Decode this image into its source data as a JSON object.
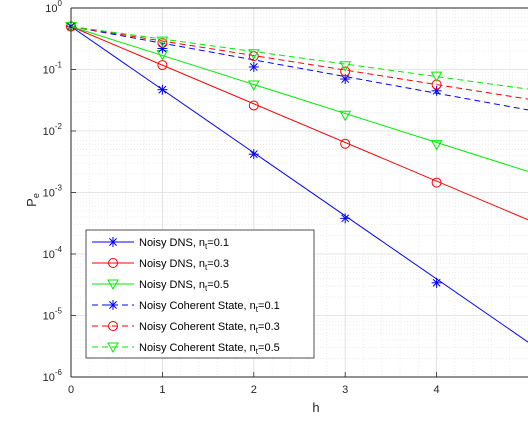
{
  "chart_data": {
    "type": "line",
    "xlabel": "h",
    "ylabel": "P",
    "ylabel_subscript": "e",
    "xlim": [
      0,
      5
    ],
    "ylim": [
      1e-06,
      1
    ],
    "yscale": "log",
    "grid": true,
    "minor_grid": true,
    "legend_position": "bottom-left",
    "x_ticks": [
      "0",
      "1",
      "2",
      "3",
      "4"
    ],
    "y_ticks": [
      {
        "base": "10",
        "exp": "-6"
      },
      {
        "base": "10",
        "exp": "-5"
      },
      {
        "base": "10",
        "exp": "-4"
      },
      {
        "base": "10",
        "exp": "-3"
      },
      {
        "base": "10",
        "exp": "-2"
      },
      {
        "base": "10",
        "exp": "-1"
      },
      {
        "base": "10",
        "exp": "0"
      }
    ],
    "series": [
      {
        "name": "Noisy DNS, n",
        "sub": "t",
        "suffix": "=0.1",
        "color": "#0000ff",
        "dash": false,
        "marker": "star",
        "line_x": [
          0,
          5
        ],
        "line_y": [
          0.5,
          3.7e-06
        ],
        "x": [
          0,
          1,
          2,
          3,
          4
        ],
        "y": [
          0.5,
          0.047,
          0.0042,
          0.00038,
          3.4e-05
        ]
      },
      {
        "name": "Noisy DNS, n",
        "sub": "t",
        "suffix": "=0.3",
        "color": "#ff0000",
        "dash": false,
        "marker": "circle",
        "line_x": [
          0,
          5
        ],
        "line_y": [
          0.5,
          0.00036
        ],
        "x": [
          0,
          1,
          2,
          3,
          4
        ],
        "y": [
          0.5,
          0.118,
          0.026,
          0.0062,
          0.00145
        ]
      },
      {
        "name": "Noisy DNS, n",
        "sub": "t",
        "suffix": "=0.5",
        "color": "#00ee00",
        "dash": false,
        "marker": "triangle",
        "line_x": [
          0,
          5
        ],
        "line_y": [
          0.5,
          0.0022
        ],
        "x": [
          0,
          1,
          2,
          3,
          4
        ],
        "y": [
          0.5,
          0.175,
          0.056,
          0.018,
          0.006
        ]
      },
      {
        "name": "Noisy Coherent State, n",
        "sub": "t",
        "suffix": "=0.1",
        "color": "#0000ff",
        "dash": true,
        "marker": "star",
        "line_x": [
          0,
          5
        ],
        "line_y": [
          0.5,
          0.022
        ],
        "x": [
          0,
          1,
          2,
          3,
          4
        ],
        "y": [
          0.5,
          0.22,
          0.11,
          0.07,
          0.045
        ]
      },
      {
        "name": "Noisy Coherent State, n",
        "sub": "t",
        "suffix": "=0.3",
        "color": "#ff0000",
        "dash": true,
        "marker": "circle",
        "line_x": [
          0,
          5
        ],
        "line_y": [
          0.5,
          0.033
        ],
        "x": [
          0,
          1,
          2,
          3,
          4
        ],
        "y": [
          0.5,
          0.27,
          0.165,
          0.093,
          0.057
        ]
      },
      {
        "name": "Noisy Coherent State, n",
        "sub": "t",
        "suffix": "=0.5",
        "color": "#00ee00",
        "dash": true,
        "marker": "triangle",
        "line_x": [
          0,
          5
        ],
        "line_y": [
          0.5,
          0.048
        ],
        "x": [
          0,
          1,
          2,
          3,
          4
        ],
        "y": [
          0.5,
          0.29,
          0.18,
          0.115,
          0.078
        ]
      }
    ]
  }
}
